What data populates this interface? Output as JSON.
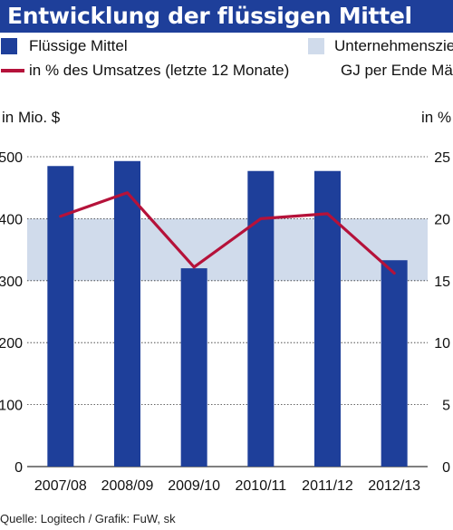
{
  "title": "Entwicklung der flüssigen Mittel",
  "legend": {
    "bars_label": "Flüssige Mittel",
    "line_label": "in % des Umsatzes (letzte 12 Monate)",
    "band_label_1": "Unternehmensziel",
    "band_label_2": "GJ per Ende März"
  },
  "left_unit": "in Mio. $",
  "right_unit": "in %",
  "source": "Quelle: Logitech / Grafik: FuW, sk",
  "colors": {
    "title_bg": "#1e3f9a",
    "bar": "#1e3f9a",
    "line": "#b5123a",
    "band": "#d0dbeb",
    "grid": "#333333"
  },
  "chart_data": {
    "type": "bar",
    "categories": [
      "2007/08",
      "2008/09",
      "2009/10",
      "2010/11",
      "2011/12",
      "2012/13"
    ],
    "series": [
      {
        "name": "Flüssige Mittel",
        "type": "bar",
        "axis": "left",
        "values": [
          485,
          493,
          320,
          477,
          477,
          333
        ]
      },
      {
        "name": "in % des Umsatzes (letzte 12 Monate)",
        "type": "line",
        "axis": "right",
        "values": [
          20.2,
          22.1,
          16.1,
          20.0,
          20.4,
          15.6
        ]
      }
    ],
    "target_band": {
      "name": "Unternehmensziel GJ per Ende März",
      "axis": "left",
      "range": [
        300,
        400
      ]
    },
    "yticks_left": [
      0,
      100,
      200,
      300,
      400,
      500
    ],
    "yticks_right": [
      0,
      5,
      10,
      15,
      20,
      25
    ],
    "ylim_left": [
      0,
      500
    ],
    "ylim_right": [
      0,
      25
    ],
    "grid": true
  }
}
